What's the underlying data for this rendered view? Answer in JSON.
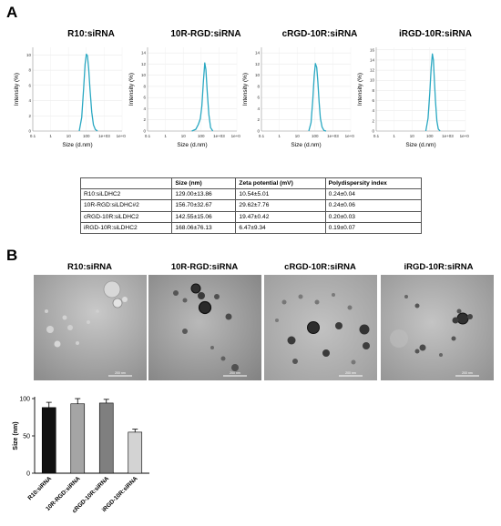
{
  "panel_a_label": "A",
  "panel_b_label": "B",
  "colors": {
    "dls_curve": "#2aa8c2",
    "bar_colors": [
      "#111111",
      "#a5a5a5",
      "#7f7f7f",
      "#d3d3d3"
    ]
  },
  "table": {
    "headers": [
      "",
      "Size (nm)",
      "Zeta potential (mV)",
      "Polydispersity index"
    ],
    "rows": [
      [
        "R10:siLDHC2",
        "129.00±13.86",
        "10.54±5.01",
        "0.24±0.04"
      ],
      [
        "10R-RGD:siLDHC#2",
        "156.70±32.67",
        "29.62±7.76",
        "0.24±0.06"
      ],
      [
        "cRGD-10R:siLDHC2",
        "142.55±15.06",
        "19.47±0.42",
        "0.20±0.03"
      ],
      [
        "iRGD-10R:siLDHC2",
        "168.06±76.13",
        "6.47±9.34",
        "0.19±0.07"
      ]
    ]
  },
  "tem": {
    "titles": [
      "R10:siRNA",
      "10R-RGD:siRNA",
      "cRGD-10R:siRNA",
      "iRGD-10R:siRNA"
    ],
    "scale_label": "200 nm"
  },
  "chart_data": [
    {
      "type": "line",
      "title": "R10:siRNA",
      "xlabel": "Size (d.nm)",
      "ylabel": "Intensity (%)",
      "x_scale": "log",
      "x_ticks": [
        "0.1",
        "1",
        "10",
        "100",
        "1e+03",
        "1e+04"
      ],
      "y_ticks": [
        "0",
        "2",
        "4",
        "6",
        "8",
        "10"
      ],
      "ylim": [
        0,
        11
      ],
      "series": [
        {
          "x": [
            40,
            55,
            70,
            85,
            100,
            115,
            135,
            160,
            200,
            250,
            320,
            420
          ],
          "y": [
            0,
            1.8,
            5.5,
            8.8,
            10.1,
            9.9,
            8.2,
            5.5,
            2.5,
            0.8,
            0.2,
            0
          ]
        }
      ]
    },
    {
      "type": "line",
      "title": "10R-RGD:siRNA",
      "xlabel": "Size (d.nm)",
      "ylabel": "Intensity (%)",
      "x_scale": "log",
      "x_ticks": [
        "0.1",
        "1",
        "10",
        "100",
        "1e+03",
        "1e+04"
      ],
      "y_ticks": [
        "0",
        "2",
        "4",
        "6",
        "8",
        "10",
        "12",
        "14"
      ],
      "ylim": [
        0,
        15
      ],
      "series": [
        {
          "x": [
            30,
            50,
            70,
            90,
            110,
            135,
            160,
            185,
            220,
            270,
            340,
            450
          ],
          "y": [
            0,
            0.3,
            1.2,
            2.2,
            4.5,
            9.0,
            12.2,
            11.0,
            7.0,
            3.0,
            0.6,
            0
          ]
        }
      ]
    },
    {
      "type": "line",
      "title": "cRGD-10R:siRNA",
      "xlabel": "Size (d.nm)",
      "ylabel": "Intensity (%)",
      "x_scale": "log",
      "x_ticks": [
        "0.1",
        "1",
        "10",
        "100",
        "1e+03",
        "1e+04"
      ],
      "y_ticks": [
        "0",
        "2",
        "4",
        "6",
        "8",
        "10",
        "12",
        "14"
      ],
      "ylim": [
        0,
        15
      ],
      "series": [
        {
          "x": [
            45,
            60,
            75,
            90,
            105,
            125,
            145,
            170,
            200,
            250,
            320,
            420
          ],
          "y": [
            0,
            1.5,
            5.5,
            9.8,
            12.1,
            11.4,
            8.8,
            5.2,
            2.3,
            0.7,
            0.1,
            0
          ]
        }
      ]
    },
    {
      "type": "line",
      "title": "iRGD-10R:siRNA",
      "xlabel": "Size (d.nm)",
      "ylabel": "Intensity (%)",
      "x_scale": "log",
      "x_ticks": [
        "0.1",
        "1",
        "10",
        "100",
        "1e+03",
        "1e+04"
      ],
      "y_ticks": [
        "0",
        "2",
        "4",
        "6",
        "8",
        "10",
        "12",
        "14",
        "16"
      ],
      "ylim": [
        0,
        16.5
      ],
      "series": [
        {
          "x": [
            60,
            80,
            100,
            120,
            140,
            160,
            180,
            210,
            250,
            300,
            380
          ],
          "y": [
            0,
            2.5,
            7.5,
            12.5,
            15.2,
            14.0,
            10.2,
            5.8,
            2.0,
            0.4,
            0
          ]
        }
      ]
    },
    {
      "type": "bar",
      "title": "",
      "xlabel": "",
      "ylabel": "Size (nm)",
      "ylim": [
        0,
        100
      ],
      "y_ticks": [
        "0",
        "50",
        "100"
      ],
      "categories": [
        "R10:siRNA",
        "10R-RGD:siRNA",
        "cRGD-10R:siRNA",
        "iRGD-10R:siRNA"
      ],
      "values": [
        88,
        93,
        94,
        55
      ],
      "errors": [
        7,
        7,
        5,
        4
      ]
    }
  ]
}
